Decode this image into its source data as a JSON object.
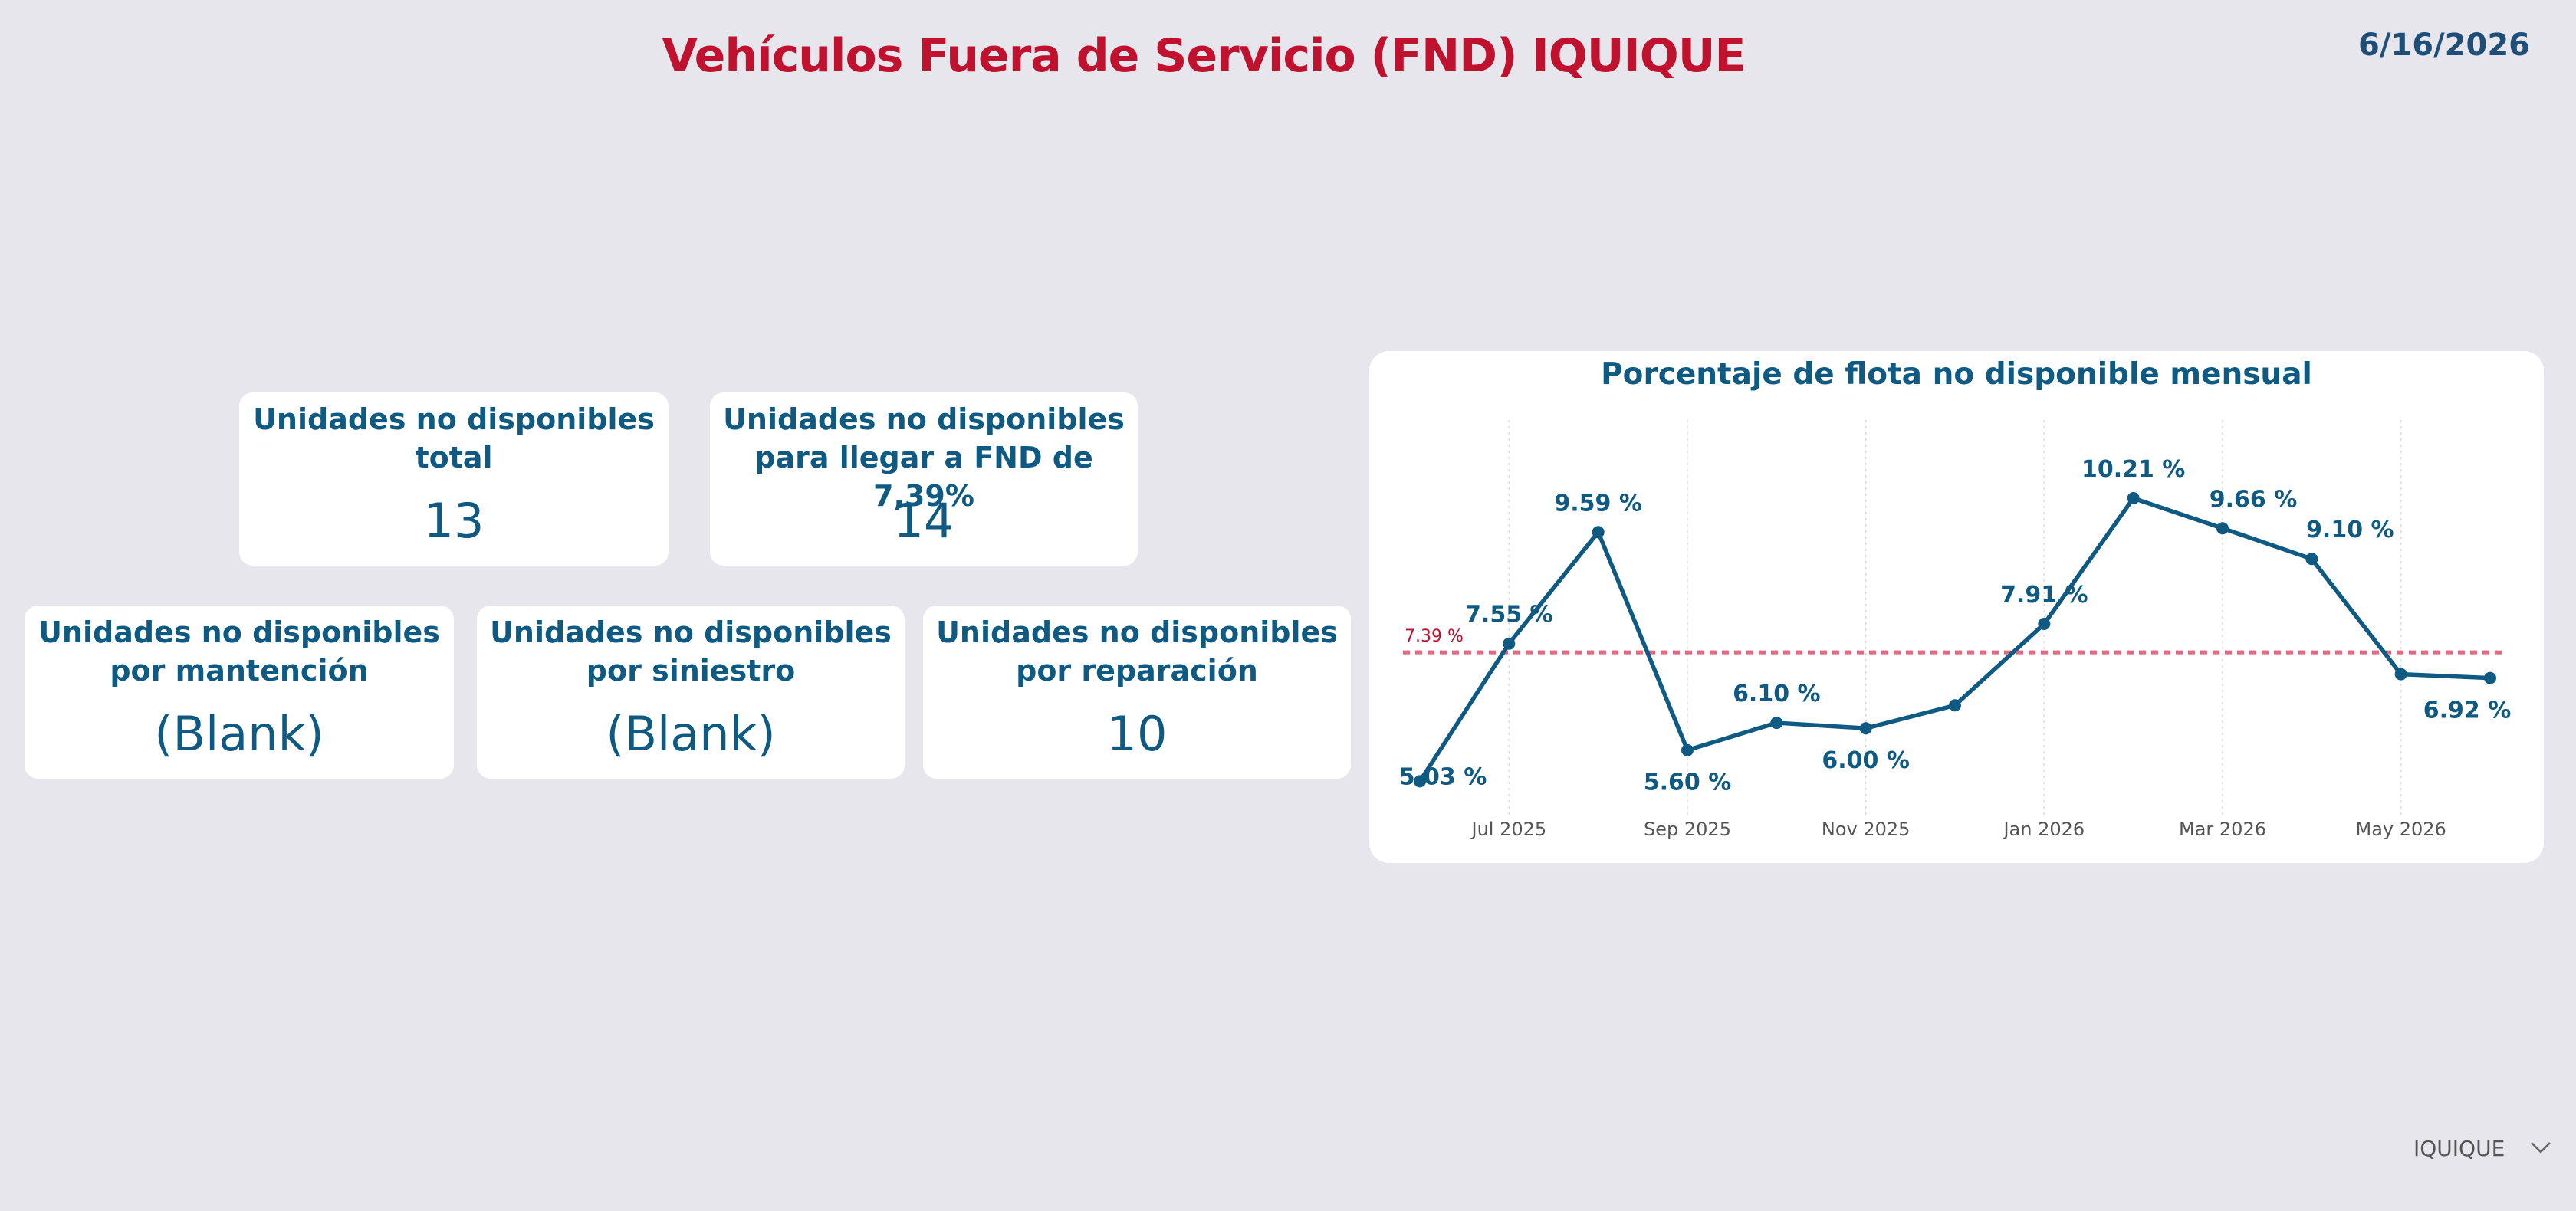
{
  "header": {
    "title": "Vehículos Fuera de Servicio (FND) IQUIQUE",
    "date": "6/16/2026"
  },
  "cards": {
    "total": {
      "label_line1": "Unidades no disponibles",
      "label_line2": "total",
      "value": "13"
    },
    "target": {
      "label_line1": "Unidades no disponibles",
      "label_line2": "para llegar a FND de 7,39%",
      "value": "14"
    },
    "mantencion": {
      "label_line1": "Unidades no disponibles",
      "label_line2": "por mantención",
      "value": "(Blank)"
    },
    "siniestro": {
      "label_line1": "Unidades no disponibles",
      "label_line2": "por siniestro",
      "value": "(Blank)"
    },
    "reparacion": {
      "label_line1": "Unidades no disponibles",
      "label_line2": "por reparación",
      "value": "10"
    }
  },
  "chart_data": {
    "type": "line",
    "title": "Porcentaje de flota no disponible mensual",
    "x": [
      "Jun 2025",
      "Jul 2025",
      "Aug 2025",
      "Sep 2025",
      "Oct 2025",
      "Nov 2025",
      "Dec 2025",
      "Jan 2026",
      "Feb 2026",
      "Mar 2026",
      "Apr 2026",
      "May 2026",
      "Jun 2026"
    ],
    "x_tick_labels": [
      "Jul 2025",
      "Sep 2025",
      "Nov 2025",
      "Jan 2026",
      "Mar 2026",
      "May 2026"
    ],
    "values": [
      5.03,
      7.55,
      9.59,
      5.6,
      6.1,
      6.0,
      6.42,
      7.91,
      10.21,
      9.66,
      9.1,
      6.99,
      6.92
    ],
    "data_labels": [
      "5.03 %",
      "7.55 %",
      "9.59 %",
      "5.60 %",
      "6.10 %",
      "6.00 %",
      "",
      "7.91 %",
      "10.21 %",
      "9.66 %",
      "9.10 %",
      "",
      "6.92 %"
    ],
    "reference_line": {
      "value": 7.39,
      "label": "7.39 %",
      "color": "#e06a80"
    },
    "line_color": "#0e5a82",
    "ylim": [
      4.6,
      10.8
    ],
    "grid": "vertical-dotted",
    "xlabel": "",
    "ylabel": ""
  },
  "slicer": {
    "selected": "IQUIQUE"
  }
}
